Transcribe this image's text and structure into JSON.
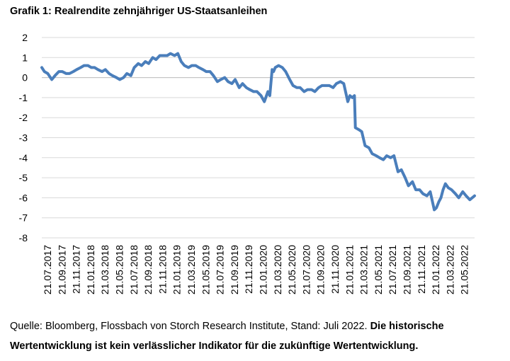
{
  "title": "Grafik 1: Realrendite zehnjähriger US-Staatsanleihen",
  "source": {
    "text": "Quelle: Bloomberg, Flossbach von Storch Research Institute, Stand: Juli 2022. ",
    "disclaimer": "Die historische Wertentwicklung ist kein verlässlicher Indikator für die zukünftige Wertentwicklung."
  },
  "colors": {
    "line": "#4a7ebb",
    "grid": "#d9d9d9",
    "axis": "#bfbfbf",
    "text": "#000000"
  },
  "chart_data": {
    "type": "line",
    "title": "Grafik 1: Realrendite zehnjähriger US-Staatsanleihen",
    "xlabel": "",
    "ylabel": "",
    "ylim": [
      -8,
      2
    ],
    "yticks": [
      2,
      1,
      0,
      -1,
      -2,
      -3,
      -4,
      -5,
      -6,
      -7,
      -8
    ],
    "xlim": [
      "2017-07-21",
      "2022-07-21"
    ],
    "x_tick_labels": [
      "21.07.2017",
      "21.09.2017",
      "21.11.2017",
      "21.01.2018",
      "21.03.2018",
      "21.05.2018",
      "21.07.2018",
      "21.09.2018",
      "21.11.2018",
      "21.01.2019",
      "21.03.2019",
      "21.05.2019",
      "21.07.2019",
      "21.09.2019",
      "21.11.2019",
      "21.01.2020",
      "21.03.2020",
      "21.05.2020",
      "21.07.2020",
      "21.09.2020",
      "21.11.2020",
      "21.01.2021",
      "21.03.2021",
      "21.05.2021",
      "21.07.2021",
      "21.09.2021",
      "21.11.2021",
      "21.01.2022",
      "21.03.2022",
      "21.05.2022"
    ],
    "grid": true,
    "legend": "none",
    "series": [
      {
        "x": [
          "2017-07-21",
          "2017-08-01",
          "2017-08-15",
          "2017-09-01",
          "2017-09-15",
          "2017-10-01",
          "2017-10-15",
          "2017-11-01",
          "2017-11-15",
          "2017-12-01",
          "2017-12-15",
          "2018-01-01",
          "2018-01-15",
          "2018-02-01",
          "2018-02-15",
          "2018-03-01",
          "2018-03-15",
          "2018-04-01",
          "2018-04-15",
          "2018-05-01",
          "2018-05-15",
          "2018-06-01",
          "2018-06-15",
          "2018-07-01",
          "2018-07-15",
          "2018-08-01",
          "2018-08-15",
          "2018-09-01",
          "2018-09-15",
          "2018-10-01",
          "2018-10-15",
          "2018-11-01",
          "2018-11-15",
          "2018-12-01",
          "2018-12-15",
          "2019-01-01",
          "2019-01-15",
          "2019-02-01",
          "2019-02-15",
          "2019-03-01",
          "2019-03-15",
          "2019-04-01",
          "2019-04-15",
          "2019-05-01",
          "2019-05-15",
          "2019-06-01",
          "2019-06-15",
          "2019-07-01",
          "2019-07-15",
          "2019-08-01",
          "2019-08-15",
          "2019-09-01",
          "2019-09-15",
          "2019-10-01",
          "2019-10-15",
          "2019-11-01",
          "2019-11-15",
          "2019-12-01",
          "2019-12-15",
          "2020-01-01",
          "2020-01-15",
          "2020-02-01",
          "2020-02-15",
          "2020-03-01",
          "2020-03-09",
          "2020-03-19",
          "2020-03-25",
          "2020-04-01",
          "2020-04-15",
          "2020-05-01",
          "2020-05-15",
          "2020-06-01",
          "2020-06-15",
          "2020-07-01",
          "2020-07-15",
          "2020-08-01",
          "2020-08-15",
          "2020-09-01",
          "2020-09-15",
          "2020-10-01",
          "2020-10-15",
          "2020-11-01",
          "2020-11-15",
          "2020-12-01",
          "2020-12-15",
          "2021-01-01",
          "2021-01-15",
          "2021-02-01",
          "2021-02-10",
          "2021-02-20",
          "2021-03-01",
          "2021-03-05",
          "2021-03-20",
          "2021-04-01",
          "2021-04-15",
          "2021-05-01",
          "2021-05-15",
          "2021-06-01",
          "2021-06-15",
          "2021-07-01",
          "2021-07-15",
          "2021-08-01",
          "2021-08-15",
          "2021-09-01",
          "2021-09-15",
          "2021-10-01",
          "2021-10-15",
          "2021-11-01",
          "2021-11-15",
          "2021-12-01",
          "2021-12-15",
          "2022-01-01",
          "2022-01-15",
          "2022-02-01",
          "2022-02-10",
          "2022-02-20",
          "2022-03-01",
          "2022-03-10",
          "2022-03-20",
          "2022-04-01",
          "2022-04-15",
          "2022-05-01",
          "2022-05-15",
          "2022-06-01",
          "2022-06-15",
          "2022-07-01",
          "2022-07-21"
        ],
        "y": [
          0.5,
          0.3,
          0.2,
          -0.1,
          0.1,
          0.3,
          0.3,
          0.2,
          0.2,
          0.3,
          0.4,
          0.5,
          0.6,
          0.6,
          0.5,
          0.5,
          0.4,
          0.3,
          0.4,
          0.2,
          0.1,
          0.0,
          -0.1,
          0.0,
          0.2,
          0.1,
          0.5,
          0.7,
          0.6,
          0.8,
          0.7,
          1.0,
          0.9,
          1.1,
          1.1,
          1.1,
          1.2,
          1.1,
          1.2,
          0.8,
          0.6,
          0.5,
          0.6,
          0.6,
          0.5,
          0.4,
          0.3,
          0.3,
          0.1,
          -0.2,
          -0.1,
          0.0,
          -0.2,
          -0.3,
          -0.1,
          -0.5,
          -0.3,
          -0.5,
          -0.6,
          -0.7,
          -0.7,
          -0.9,
          -1.2,
          -0.7,
          -0.9,
          0.4,
          0.3,
          0.5,
          0.6,
          0.5,
          0.3,
          -0.1,
          -0.4,
          -0.5,
          -0.5,
          -0.7,
          -0.6,
          -0.6,
          -0.7,
          -0.5,
          -0.4,
          -0.4,
          -0.4,
          -0.5,
          -0.3,
          -0.2,
          -0.3,
          -1.2,
          -0.9,
          -1.0,
          -0.9,
          -2.5,
          -2.6,
          -2.7,
          -3.4,
          -3.5,
          -3.8,
          -3.9,
          -4.0,
          -4.1,
          -3.9,
          -4.0,
          -3.9,
          -4.7,
          -4.6,
          -5.0,
          -5.4,
          -5.2,
          -5.6,
          -5.6,
          -5.8,
          -5.9,
          -5.7,
          -6.6,
          -6.5,
          -6.2,
          -6.0,
          -5.6,
          -5.3,
          -5.5,
          -5.6,
          -5.8,
          -6.0,
          -5.7,
          -5.9,
          -6.1,
          -5.9
        ]
      }
    ]
  }
}
